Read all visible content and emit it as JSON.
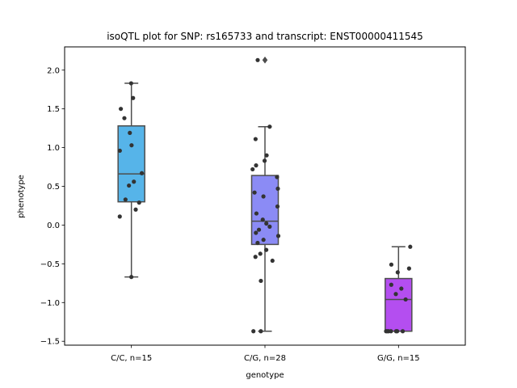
{
  "chart_data": {
    "type": "box",
    "title": "isoQTL plot for SNP: rs165733 and transcript: ENST00000411545",
    "xlabel": "genotype",
    "ylabel": "phenotype",
    "ylim": [
      -1.55,
      2.3
    ],
    "yticks": [
      -1.5,
      -1.0,
      -0.5,
      0.0,
      0.5,
      1.0,
      1.5,
      2.0
    ],
    "ytick_labels": [
      "−1.5",
      "−1.0",
      "−0.5",
      "0.0",
      "0.5",
      "1.0",
      "1.5",
      "2.0"
    ],
    "grid": false,
    "categories": [
      "C/C, n=15",
      "C/G, n=28",
      "G/G, n=15"
    ],
    "colors": {
      "box_fills": [
        "#56b4e9",
        "#8b8bf5",
        "#b44ef0"
      ],
      "box_edge": "#4d4d4d",
      "points": "#333333",
      "axes": "#000000"
    },
    "boxes": [
      {
        "q1": 0.3,
        "median": 0.66,
        "q3": 1.28,
        "whisker_low": -0.67,
        "whisker_high": 1.83,
        "outliers": []
      },
      {
        "q1": -0.25,
        "median": 0.05,
        "q3": 0.64,
        "whisker_low": -1.37,
        "whisker_high": 1.27,
        "outliers": [
          2.13
        ]
      },
      {
        "q1": -1.37,
        "median": -0.96,
        "q3": -0.69,
        "whisker_low": -1.37,
        "whisker_high": -0.28,
        "outliers": []
      }
    ],
    "points": [
      [
        1.83,
        1.64,
        1.5,
        1.38,
        1.19,
        1.03,
        0.96,
        0.67,
        0.56,
        0.51,
        0.33,
        0.29,
        0.2,
        0.11,
        -0.67
      ],
      [
        2.13,
        1.27,
        1.11,
        0.9,
        0.83,
        0.77,
        0.72,
        0.62,
        0.47,
        0.42,
        0.37,
        0.24,
        0.15,
        0.07,
        0.02,
        -0.02,
        -0.06,
        -0.1,
        -0.14,
        -0.19,
        -0.23,
        -0.32,
        -0.37,
        -0.41,
        -0.46,
        -0.72,
        -1.37,
        -1.37
      ],
      [
        -0.28,
        -0.51,
        -0.56,
        -0.61,
        -0.77,
        -0.82,
        -0.89,
        -0.96,
        -1.37,
        -1.37,
        -1.37,
        -1.37,
        -1.37,
        -1.37,
        -1.37
      ]
    ]
  }
}
